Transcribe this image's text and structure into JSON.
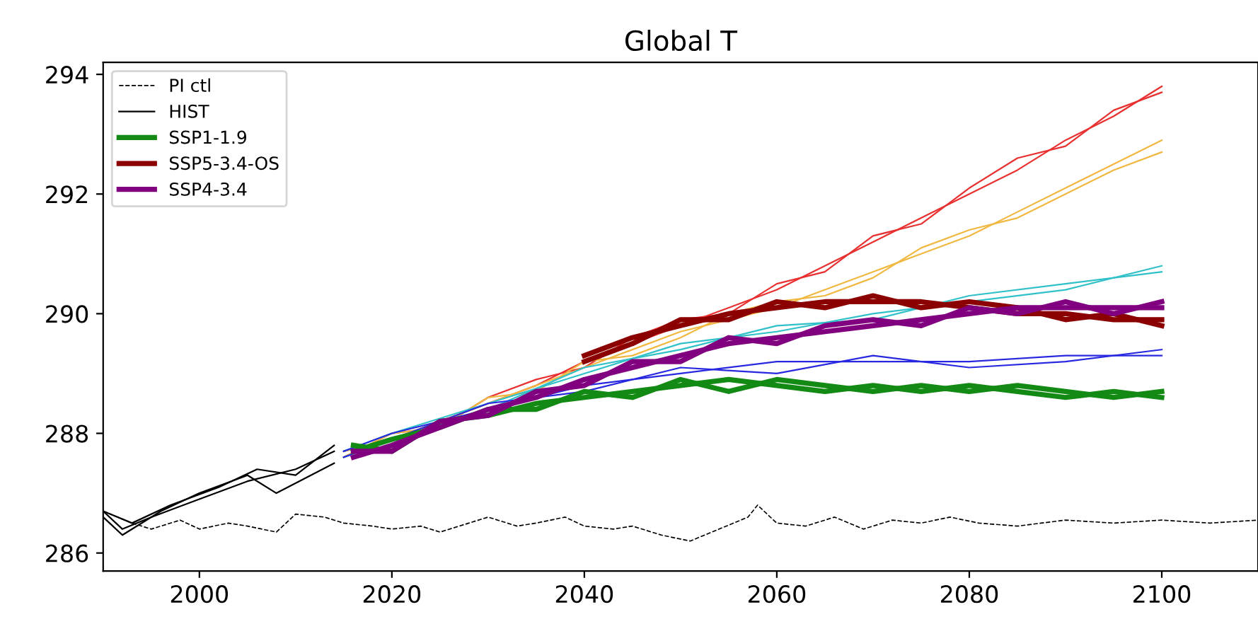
{
  "chart_data": {
    "type": "line",
    "title": "Global T",
    "xlim": [
      1990,
      2110
    ],
    "ylim": [
      285.7,
      294.2
    ],
    "xticks": [
      2000,
      2020,
      2040,
      2060,
      2080,
      2100
    ],
    "yticks": [
      286,
      288,
      290,
      292,
      294
    ],
    "grid": false,
    "legend": "top left",
    "marker": "none",
    "series": [
      {
        "name": "PI ctl",
        "color": "#000000",
        "line_style": "dashed",
        "x": [
          1990,
          1993,
          1995,
          1998,
          2000,
          2003,
          2005,
          2008,
          2010,
          2013,
          2015,
          2018,
          2020,
          2023,
          2025,
          2028,
          2030,
          2033,
          2035,
          2038,
          2040,
          2043,
          2045,
          2048,
          2051,
          2054,
          2057,
          2058,
          2060,
          2063,
          2066,
          2069,
          2072,
          2075,
          2078,
          2081,
          2085,
          2090,
          2095,
          2100,
          2105,
          2110
        ],
        "values": [
          286.7,
          286.5,
          286.4,
          286.55,
          286.4,
          286.5,
          286.45,
          286.35,
          286.65,
          286.6,
          286.5,
          286.45,
          286.4,
          286.45,
          286.35,
          286.5,
          286.6,
          286.45,
          286.5,
          286.6,
          286.45,
          286.4,
          286.45,
          286.3,
          286.2,
          286.4,
          286.6,
          286.8,
          286.5,
          286.45,
          286.6,
          286.4,
          286.55,
          286.5,
          286.6,
          286.5,
          286.45,
          286.55,
          286.5,
          286.55,
          286.5,
          286.55
        ]
      },
      {
        "name": "HIST",
        "color": "#000000",
        "x": [
          1990,
          1992,
          1995,
          2000,
          2005,
          2010,
          2014
        ],
        "values": [
          286.7,
          286.4,
          286.6,
          286.9,
          287.2,
          287.4,
          287.7
        ]
      },
      {
        "color": "#000000",
        "x": [
          1990,
          1992,
          1996,
          2000,
          2005,
          2008,
          2014
        ],
        "values": [
          286.6,
          286.3,
          286.7,
          287.0,
          287.3,
          287.0,
          287.5
        ]
      },
      {
        "color": "#000000",
        "x": [
          1990,
          1993,
          1997,
          2002,
          2006,
          2010,
          2014
        ],
        "values": [
          286.7,
          286.5,
          286.8,
          287.1,
          287.4,
          287.3,
          287.8
        ]
      },
      {
        "color": "#e83030",
        "x": [
          2015,
          2020,
          2025,
          2030,
          2035,
          2040,
          2045,
          2050,
          2055,
          2060,
          2065,
          2070,
          2075,
          2080,
          2085,
          2090,
          2095,
          2100
        ],
        "values": [
          287.7,
          287.9,
          288.2,
          288.5,
          288.8,
          289.2,
          289.5,
          289.8,
          290.1,
          290.4,
          290.8,
          291.2,
          291.6,
          292.0,
          292.4,
          292.9,
          293.3,
          293.8
        ]
      },
      {
        "color": "#e83030",
        "x": [
          2015,
          2020,
          2025,
          2030,
          2035,
          2040,
          2045,
          2050,
          2055,
          2060,
          2065,
          2070,
          2075,
          2080,
          2085,
          2090,
          2095,
          2100
        ],
        "values": [
          287.6,
          288.0,
          288.1,
          288.6,
          288.9,
          289.1,
          289.6,
          289.9,
          290.0,
          290.5,
          290.7,
          291.3,
          291.5,
          292.1,
          292.6,
          292.8,
          293.4,
          293.7
        ]
      },
      {
        "color": "#f0b840",
        "x": [
          2015,
          2020,
          2025,
          2030,
          2035,
          2040,
          2045,
          2050,
          2055,
          2060,
          2065,
          2070,
          2075,
          2080,
          2085,
          2090,
          2095,
          2100
        ],
        "values": [
          287.7,
          287.9,
          288.2,
          288.5,
          288.8,
          289.1,
          289.4,
          289.7,
          289.9,
          290.1,
          290.4,
          290.7,
          291.0,
          291.3,
          291.7,
          292.1,
          292.5,
          292.9
        ]
      },
      {
        "color": "#f0b840",
        "x": [
          2015,
          2020,
          2025,
          2030,
          2035,
          2040,
          2045,
          2050,
          2055,
          2060,
          2065,
          2070,
          2075,
          2080,
          2085,
          2090,
          2095,
          2100
        ],
        "values": [
          287.6,
          288.0,
          288.1,
          288.6,
          288.7,
          289.2,
          289.3,
          289.6,
          290.0,
          290.2,
          290.3,
          290.6,
          291.1,
          291.4,
          291.6,
          292.0,
          292.4,
          292.7
        ]
      },
      {
        "color": "#30c0c8",
        "x": [
          2015,
          2020,
          2030,
          2040,
          2050,
          2060,
          2070,
          2080,
          2090,
          2100
        ],
        "values": [
          287.7,
          288.0,
          288.5,
          289.0,
          289.5,
          289.7,
          290.0,
          290.2,
          290.4,
          290.8
        ]
      },
      {
        "color": "#30c0c8",
        "x": [
          2015,
          2020,
          2030,
          2040,
          2050,
          2060,
          2070,
          2080,
          2090,
          2100
        ],
        "values": [
          287.6,
          287.9,
          288.4,
          289.1,
          289.4,
          289.8,
          289.9,
          290.3,
          290.5,
          290.7
        ]
      },
      {
        "color": "#2828e0",
        "x": [
          2015,
          2020,
          2030,
          2040,
          2050,
          2060,
          2070,
          2080,
          2090,
          2100
        ],
        "values": [
          287.7,
          288.0,
          288.4,
          288.8,
          289.0,
          289.2,
          289.2,
          289.2,
          289.3,
          289.3
        ]
      },
      {
        "color": "#2828e0",
        "x": [
          2015,
          2020,
          2030,
          2040,
          2050,
          2060,
          2070,
          2080,
          2090,
          2100
        ],
        "values": [
          287.6,
          287.9,
          288.5,
          288.7,
          289.1,
          289.0,
          289.3,
          289.1,
          289.2,
          289.4
        ]
      },
      {
        "name": "SSP1-1.9",
        "color": "#138a13",
        "x": [
          2016,
          2020,
          2025,
          2030,
          2035,
          2040,
          2045,
          2050,
          2055,
          2060,
          2065,
          2070,
          2075,
          2080,
          2085,
          2090,
          2095,
          2100
        ],
        "values": [
          287.8,
          287.7,
          288.2,
          288.3,
          288.5,
          288.6,
          288.7,
          288.8,
          288.9,
          288.8,
          288.7,
          288.8,
          288.7,
          288.8,
          288.7,
          288.6,
          288.7,
          288.6
        ]
      },
      {
        "color": "#138a13",
        "x": [
          2016,
          2020,
          2025,
          2030,
          2035,
          2040,
          2045,
          2050,
          2055,
          2060,
          2065,
          2070,
          2075,
          2080,
          2085,
          2090,
          2095,
          2100
        ],
        "values": [
          287.7,
          287.9,
          288.1,
          288.4,
          288.4,
          288.7,
          288.6,
          288.9,
          288.7,
          288.9,
          288.8,
          288.7,
          288.8,
          288.7,
          288.8,
          288.7,
          288.6,
          288.7
        ]
      },
      {
        "name": "SSP5-3.4-OS",
        "color": "#8b0000",
        "x": [
          2040,
          2045,
          2050,
          2055,
          2060,
          2065,
          2070,
          2075,
          2080,
          2085,
          2090,
          2095,
          2100
        ],
        "values": [
          289.3,
          289.6,
          289.8,
          290.0,
          290.1,
          290.2,
          290.2,
          290.2,
          290.1,
          290.0,
          290.0,
          289.9,
          289.9
        ]
      },
      {
        "color": "#8b0000",
        "x": [
          2040,
          2045,
          2050,
          2055,
          2060,
          2065,
          2070,
          2075,
          2080,
          2085,
          2090,
          2095,
          2100
        ],
        "values": [
          289.2,
          289.5,
          289.9,
          289.9,
          290.2,
          290.1,
          290.3,
          290.1,
          290.2,
          290.1,
          289.9,
          290.0,
          289.8
        ]
      },
      {
        "name": "SSP4-3.4",
        "color": "#800080",
        "x": [
          2016,
          2020,
          2025,
          2030,
          2035,
          2040,
          2045,
          2050,
          2055,
          2060,
          2065,
          2070,
          2075,
          2080,
          2085,
          2090,
          2095,
          2100
        ],
        "values": [
          287.6,
          287.8,
          288.1,
          288.4,
          288.6,
          288.9,
          289.1,
          289.3,
          289.5,
          289.6,
          289.7,
          289.8,
          289.9,
          290.0,
          290.1,
          290.1,
          290.1,
          290.1
        ]
      },
      {
        "color": "#800080",
        "x": [
          2016,
          2020,
          2025,
          2030,
          2035,
          2040,
          2045,
          2050,
          2055,
          2060,
          2065,
          2070,
          2075,
          2080,
          2085,
          2090,
          2095,
          2100
        ],
        "values": [
          287.7,
          287.7,
          288.2,
          288.3,
          288.7,
          288.8,
          289.2,
          289.2,
          289.6,
          289.5,
          289.8,
          289.9,
          289.8,
          290.1,
          290.0,
          290.2,
          290.0,
          290.2
        ]
      }
    ]
  }
}
